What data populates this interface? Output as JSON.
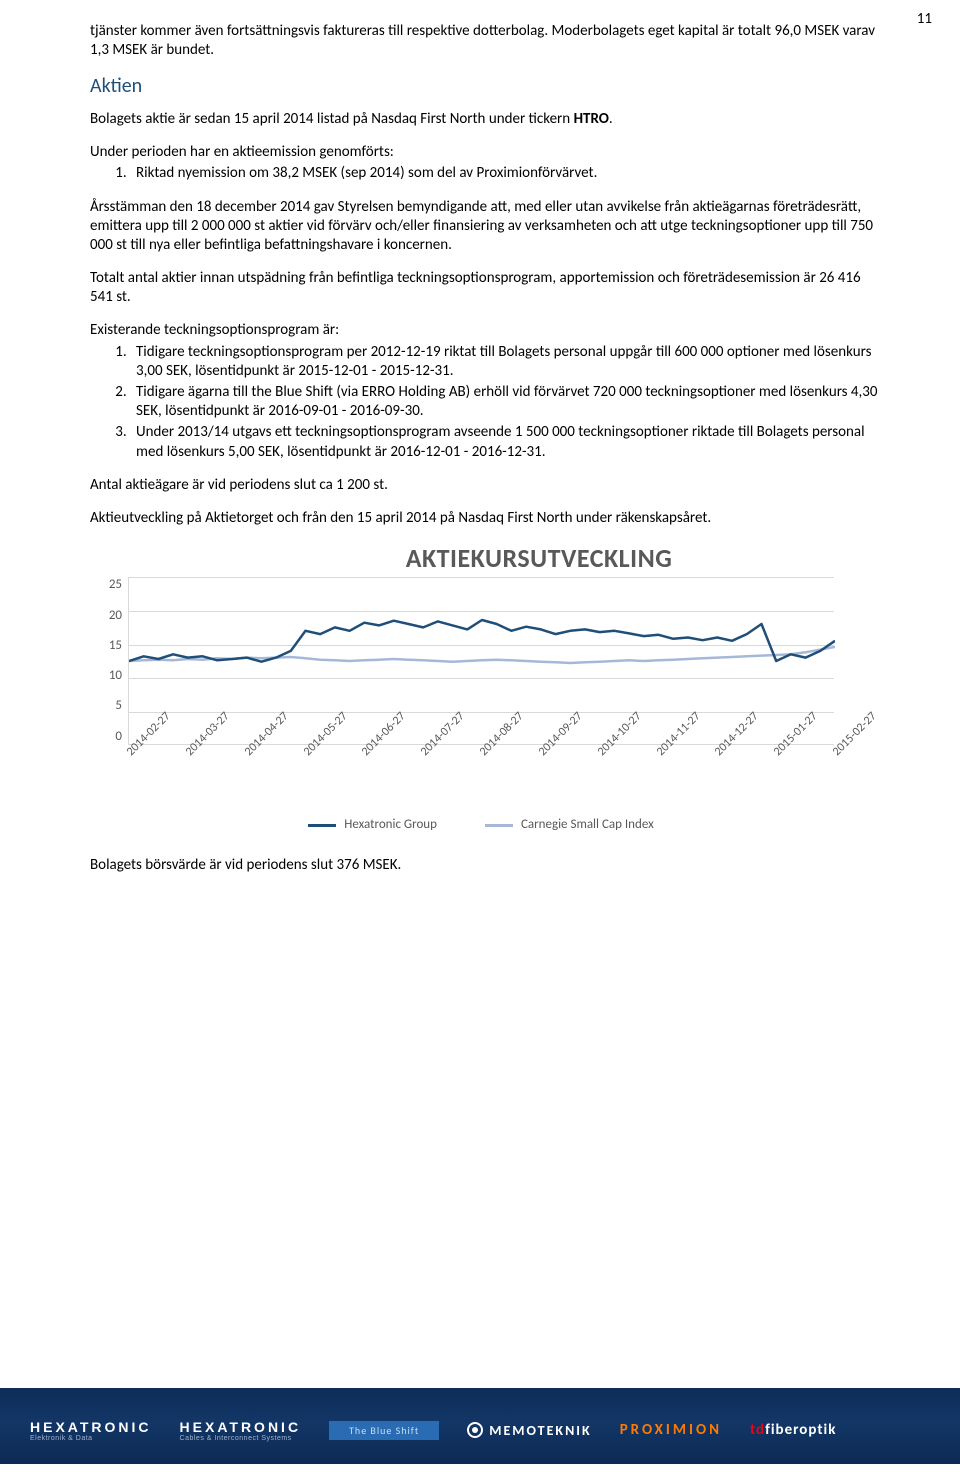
{
  "page_number": "11",
  "para_intro": "tjänster kommer även fortsättningsvis faktureras till respektive dotterbolag. Moderbolagets eget kapital är totalt 96,0 MSEK varav 1,3 MSEK är bundet.",
  "section_title": "Aktien",
  "para_a1_pre": "Bolagets aktie är sedan 15 april 2014 listad på Nasdaq First North under tickern ",
  "para_a1_bold": "HTRO",
  "para_a1_post": ".",
  "para_a2": "Under perioden har en aktieemission genomförts:",
  "list_a": [
    "Riktad nyemission om 38,2 MSEK (sep 2014) som del av Proximionförvärvet."
  ],
  "para_a3": "Årsstämman den 18 december 2014 gav Styrelsen bemyndigande att, med eller utan avvikelse från aktieägarnas företrädesrätt, emittera upp till 2 000 000 st aktier vid förvärv och/eller finansiering av verksamheten och att utge teckningsoptioner upp till 750 000 st till nya eller befintliga befattningshavare i koncernen.",
  "para_a4": "Totalt antal aktier innan utspädning från befintliga teckningsoptionsprogram, apportemission och företrädesemission är 26 416 541 st.",
  "para_a5": "Existerande teckningsoptionsprogram är:",
  "list_b": [
    "Tidigare teckningsoptionsprogram per 2012-12-19 riktat till Bolagets personal uppgår till 600 000 optioner med lösenkurs 3,00 SEK, lösentidpunkt är 2015-12-01 - 2015-12-31.",
    "Tidigare ägarna till the Blue Shift (via ERRO Holding AB) erhöll vid förvärvet 720 000 teckningsoptioner med lösenkurs 4,30 SEK, lösentidpunkt är 2016-09-01 - 2016-09-30.",
    "Under 2013/14 utgavs ett teckningsoptionsprogram avseende 1 500 000 teckningsoptioner riktade till Bolagets personal med lösenkurs 5,00 SEK, lösentidpunkt är 2016-12-01 - 2016-12-31."
  ],
  "para_a6": "Antal aktieägare är vid periodens slut ca 1 200 st.",
  "para_a7": "Aktieutveckling på Aktietorget och från den 15 april 2014 på Nasdaq First North under räkenskapsåret.",
  "para_a8": "Bolagets börsvärde är vid periodens slut 376 MSEK.",
  "chart": {
    "type": "line",
    "title": "AKTIEKURSUTVECKLING",
    "title_fontsize": 26,
    "title_color": "#595959",
    "background_color": "#ffffff",
    "grid_color": "#d9d9d9",
    "axis_text_color": "#595959",
    "ylim": [
      0,
      25
    ],
    "ytick_step": 5,
    "yticks": [
      "25",
      "20",
      "15",
      "10",
      "5",
      "0"
    ],
    "xlabels": [
      "2014-02-27",
      "2014-03-27",
      "2014-04-27",
      "2014-05-27",
      "2014-06-27",
      "2014-07-27",
      "2014-08-27",
      "2014-09-27",
      "2014-10-27",
      "2014-11-27",
      "2014-12-27",
      "2015-01-27",
      "2015-02-27"
    ],
    "series": [
      {
        "name": "Hexatronic Group",
        "color": "#1f4e79",
        "width": 2.5,
        "values": [
          12.5,
          13.2,
          12.8,
          13.5,
          13.0,
          13.2,
          12.6,
          12.8,
          13.0,
          12.4,
          13.0,
          14.0,
          17.0,
          16.5,
          17.5,
          17.0,
          18.2,
          17.8,
          18.5,
          18.0,
          17.5,
          18.4,
          17.8,
          17.2,
          18.6,
          18.0,
          17.0,
          17.6,
          17.2,
          16.5,
          17.0,
          17.2,
          16.8,
          17.0,
          16.6,
          16.2,
          16.4,
          15.8,
          16.0,
          15.6,
          16.0,
          15.5,
          16.5,
          18.0,
          12.5,
          13.5,
          13.0,
          14.0,
          15.5
        ]
      },
      {
        "name": "Carnegie Small Cap Index",
        "color": "#a6b8d8",
        "width": 2.5,
        "values": [
          12.5,
          12.6,
          12.7,
          12.6,
          12.8,
          12.7,
          12.9,
          12.8,
          13.0,
          12.9,
          13.0,
          13.1,
          12.9,
          12.7,
          12.6,
          12.5,
          12.6,
          12.7,
          12.8,
          12.7,
          12.6,
          12.5,
          12.4,
          12.5,
          12.6,
          12.7,
          12.6,
          12.5,
          12.4,
          12.3,
          12.2,
          12.3,
          12.4,
          12.5,
          12.6,
          12.5,
          12.6,
          12.7,
          12.8,
          12.9,
          13.0,
          13.1,
          13.2,
          13.3,
          13.4,
          13.5,
          13.8,
          14.2,
          14.6
        ]
      }
    ],
    "legend": [
      "Hexatronic Group",
      "Carnegie Small Cap Index"
    ]
  },
  "footer": {
    "brand1": "HEXATRONIC",
    "brand1_sub": "Elektronik & Data",
    "brand2": "HEXATRONIC",
    "brand2_sub": "Cables & Interconnect Systems",
    "blueshift": "The Blue Shift",
    "memo": "MEMOTEKNIK",
    "prox": "PROXIMION",
    "tdf_pre": "td",
    "tdf_post": "fiberoptik"
  }
}
